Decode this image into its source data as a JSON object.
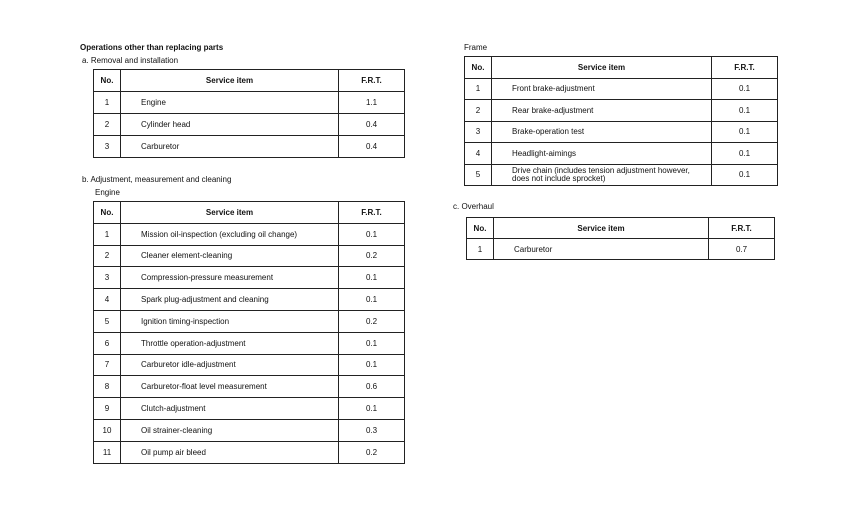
{
  "title": "Operations other than replacing parts",
  "section_a": {
    "label": "a.  Removal and installation",
    "headers": [
      "No.",
      "Service item",
      "F.R.T."
    ],
    "rows": [
      {
        "no": "1",
        "item": "Engine",
        "frt": "1.1"
      },
      {
        "no": "2",
        "item": "Cylinder head",
        "frt": "0.4"
      },
      {
        "no": "3",
        "item": "Carburetor",
        "frt": "0.4"
      }
    ]
  },
  "section_b": {
    "label": "b.  Adjustment, measurement and cleaning",
    "engine": {
      "label": "Engine",
      "headers": [
        "No.",
        "Service item",
        "F.R.T."
      ],
      "rows": [
        {
          "no": "1",
          "item": "Mission oil-inspection (excluding oil change)",
          "frt": "0.1"
        },
        {
          "no": "2",
          "item": "Cleaner element-cleaning",
          "frt": "0.2"
        },
        {
          "no": "3",
          "item": "Compression-pressure measurement",
          "frt": "0.1"
        },
        {
          "no": "4",
          "item": "Spark plug-adjustment and cleaning",
          "frt": "0.1"
        },
        {
          "no": "5",
          "item": "Ignition timing-inspection",
          "frt": "0.2"
        },
        {
          "no": "6",
          "item": "Throttle operation-adjustment",
          "frt": "0.1"
        },
        {
          "no": "7",
          "item": "Carburetor idle-adjustment",
          "frt": "0.1"
        },
        {
          "no": "8",
          "item": "Carburetor-float level measurement",
          "frt": "0.6"
        },
        {
          "no": "9",
          "item": "Clutch-adjustment",
          "frt": "0.1"
        },
        {
          "no": "10",
          "item": "Oil strainer-cleaning",
          "frt": "0.3"
        },
        {
          "no": "11",
          "item": "Oil pump air bleed",
          "frt": "0.2"
        }
      ]
    },
    "frame": {
      "label": "Frame",
      "headers": [
        "No.",
        "Service item",
        "F.R.T."
      ],
      "rows": [
        {
          "no": "1",
          "item": "Front brake-adjustment",
          "frt": "0.1"
        },
        {
          "no": "2",
          "item": "Rear brake-adjustment",
          "frt": "0.1"
        },
        {
          "no": "3",
          "item": "Brake-operation test",
          "frt": "0.1"
        },
        {
          "no": "4",
          "item": "Headlight-aimings",
          "frt": "0.1"
        },
        {
          "no": "5",
          "item": "Drive chain (includes tension adjustment however, does not include sprocket)",
          "frt": "0.1"
        }
      ]
    }
  },
  "section_c": {
    "label": "c.  Overhaul",
    "headers": [
      "No.",
      "Service item",
      "F.R.T."
    ],
    "rows": [
      {
        "no": "1",
        "item": "Carburetor",
        "frt": "0.7"
      }
    ]
  }
}
